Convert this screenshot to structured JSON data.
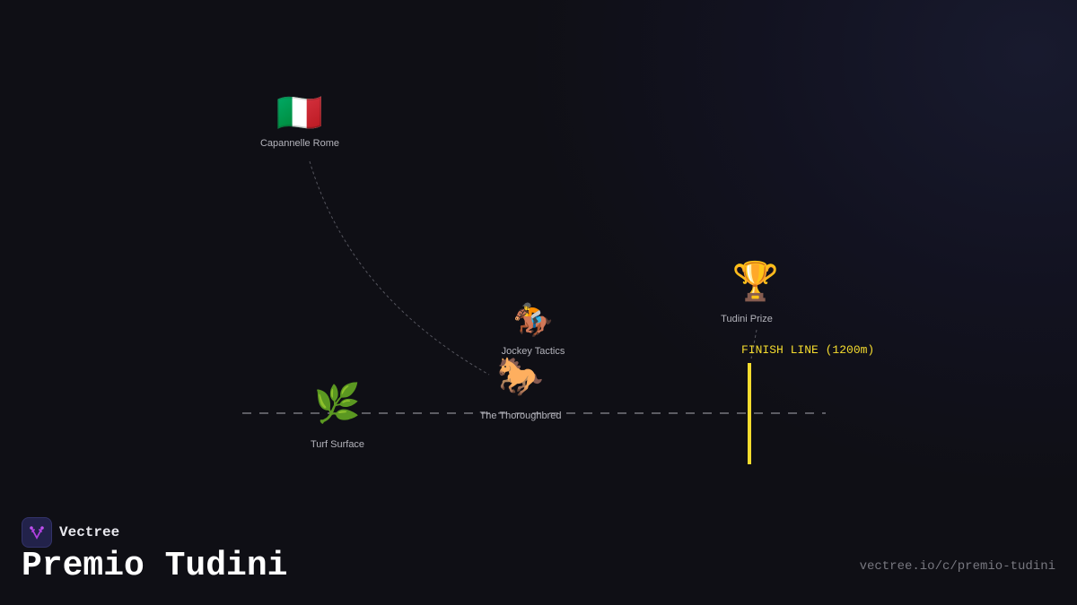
{
  "nodes": [
    {
      "label": "Capannelle Rome",
      "icon": "italy-flag-icon",
      "glyph": "🇮🇹"
    },
    {
      "label": "Jockey Tactics",
      "icon": "horse-racing-icon",
      "glyph": "🏇"
    },
    {
      "label": "The Thoroughbred",
      "icon": "horse-icon",
      "glyph": "🐎"
    },
    {
      "label": "Turf Surface",
      "icon": "herb-icon",
      "glyph": "🌿"
    },
    {
      "label": "Tudini Prize",
      "icon": "trophy-icon",
      "glyph": "🏆"
    }
  ],
  "finish_line": {
    "label": "FINISH LINE (1200m)",
    "color": "#f5dc2e"
  },
  "brand": {
    "name": "Vectree",
    "logo_color": "#b040e0"
  },
  "title": "Premio Tudini",
  "url": "vectree.io/c/premio-tudini"
}
